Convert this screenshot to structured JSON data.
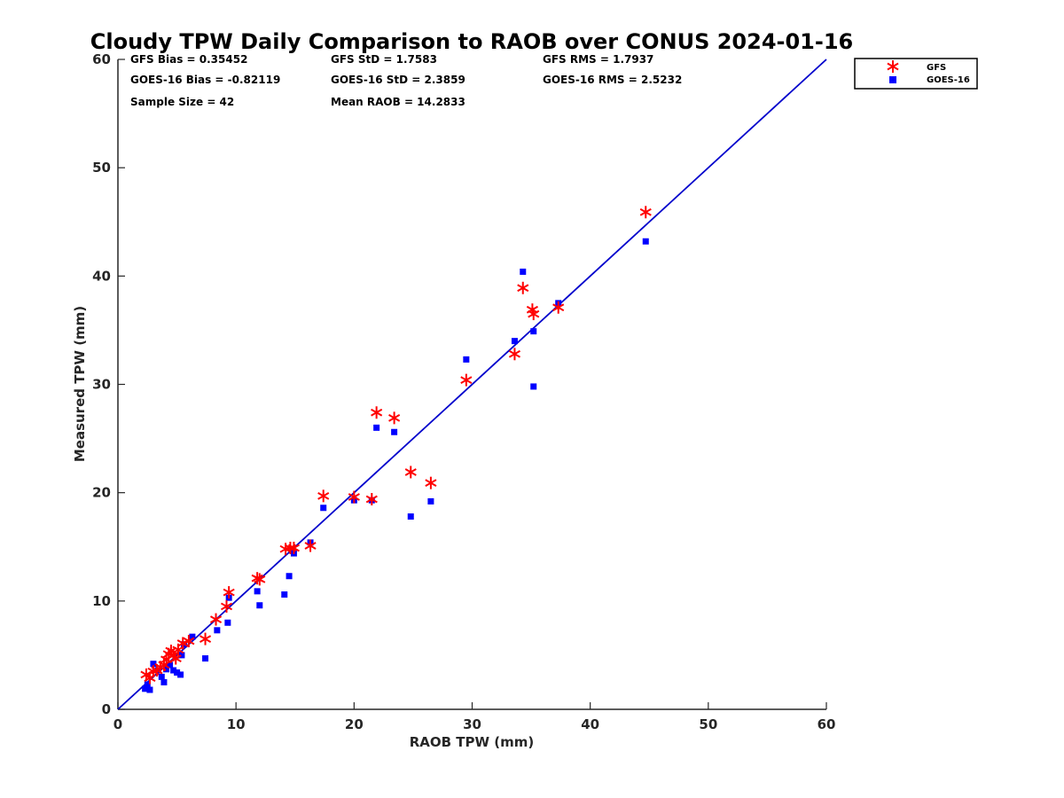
{
  "chart_data": {
    "type": "scatter",
    "title": "Cloudy TPW Daily Comparison to RAOB over CONUS 2024-01-16",
    "xlabel": "RAOB TPW (mm)",
    "ylabel": "Measured TPW (mm)",
    "xlim": [
      0,
      60
    ],
    "ylim": [
      0,
      60
    ],
    "xticks": [
      "0",
      "10",
      "20",
      "30",
      "40",
      "50",
      "60"
    ],
    "yticks": [
      "0",
      "10",
      "20",
      "30",
      "40",
      "50",
      "60"
    ],
    "grid": false,
    "legend_position": "outside-top-right",
    "identity_line": {
      "from": [
        0,
        0
      ],
      "to": [
        60,
        60
      ],
      "color": "#0000cc"
    },
    "stats": {
      "gfs_bias": "GFS Bias = 0.35452",
      "goes_bias": "GOES-16 Bias = -0.82119",
      "sample_size": "Sample Size = 42",
      "gfs_std": "GFS StD = 1.7583",
      "goes_std": "GOES-16 StD = 2.3859",
      "mean_raob": "Mean RAOB = 14.2833",
      "gfs_rms": "GFS RMS = 1.7937",
      "goes_rms": "GOES-16 RMS = 2.5232"
    },
    "series": [
      {
        "name": "GFS",
        "marker": "asterisk",
        "color": "#ff0000",
        "points": [
          [
            2.4,
            3.2
          ],
          [
            2.7,
            2.9
          ],
          [
            3.0,
            3.5
          ],
          [
            3.3,
            3.6
          ],
          [
            3.6,
            3.9
          ],
          [
            3.9,
            4.1
          ],
          [
            4.1,
            4.6
          ],
          [
            4.3,
            5.1
          ],
          [
            4.5,
            5.4
          ],
          [
            4.7,
            5.0
          ],
          [
            4.9,
            4.7
          ],
          [
            5.1,
            5.5
          ],
          [
            5.5,
            6.1
          ],
          [
            6.0,
            6.3
          ],
          [
            7.4,
            6.5
          ],
          [
            8.3,
            8.3
          ],
          [
            9.2,
            9.5
          ],
          [
            9.4,
            10.8
          ],
          [
            11.8,
            12.1
          ],
          [
            12.0,
            12.0
          ],
          [
            14.2,
            14.8
          ],
          [
            14.6,
            14.9
          ],
          [
            14.9,
            14.9
          ],
          [
            16.3,
            15.1
          ],
          [
            17.4,
            19.7
          ],
          [
            20.0,
            19.6
          ],
          [
            21.5,
            19.4
          ],
          [
            21.9,
            27.4
          ],
          [
            23.4,
            26.9
          ],
          [
            24.8,
            21.9
          ],
          [
            26.5,
            20.9
          ],
          [
            29.5,
            30.4
          ],
          [
            33.6,
            32.8
          ],
          [
            34.3,
            38.9
          ],
          [
            35.1,
            36.9
          ],
          [
            35.2,
            36.5
          ],
          [
            37.3,
            37.1
          ],
          [
            44.7,
            45.9
          ]
        ]
      },
      {
        "name": "GOES-16",
        "marker": "square",
        "color": "#0000ff",
        "points": [
          [
            2.3,
            1.9
          ],
          [
            2.5,
            2.3
          ],
          [
            2.7,
            1.8
          ],
          [
            3.0,
            4.2
          ],
          [
            3.4,
            3.6
          ],
          [
            3.7,
            3.0
          ],
          [
            3.9,
            2.5
          ],
          [
            4.1,
            3.7
          ],
          [
            4.4,
            4.1
          ],
          [
            4.7,
            3.6
          ],
          [
            5.0,
            3.4
          ],
          [
            5.3,
            3.2
          ],
          [
            5.4,
            5.0
          ],
          [
            5.6,
            6.0
          ],
          [
            6.3,
            6.7
          ],
          [
            7.4,
            4.7
          ],
          [
            8.4,
            7.3
          ],
          [
            9.3,
            8.0
          ],
          [
            9.4,
            10.3
          ],
          [
            11.8,
            10.9
          ],
          [
            12.0,
            9.6
          ],
          [
            14.1,
            10.6
          ],
          [
            14.5,
            12.3
          ],
          [
            14.9,
            14.4
          ],
          [
            16.3,
            15.4
          ],
          [
            17.4,
            18.6
          ],
          [
            20.0,
            19.3
          ],
          [
            21.5,
            19.3
          ],
          [
            21.9,
            26.0
          ],
          [
            23.4,
            25.6
          ],
          [
            24.8,
            17.8
          ],
          [
            26.5,
            19.2
          ],
          [
            29.5,
            32.3
          ],
          [
            33.6,
            34.0
          ],
          [
            34.3,
            40.4
          ],
          [
            35.2,
            34.9
          ],
          [
            35.2,
            29.8
          ],
          [
            37.3,
            37.5
          ],
          [
            44.7,
            43.2
          ]
        ]
      }
    ]
  }
}
